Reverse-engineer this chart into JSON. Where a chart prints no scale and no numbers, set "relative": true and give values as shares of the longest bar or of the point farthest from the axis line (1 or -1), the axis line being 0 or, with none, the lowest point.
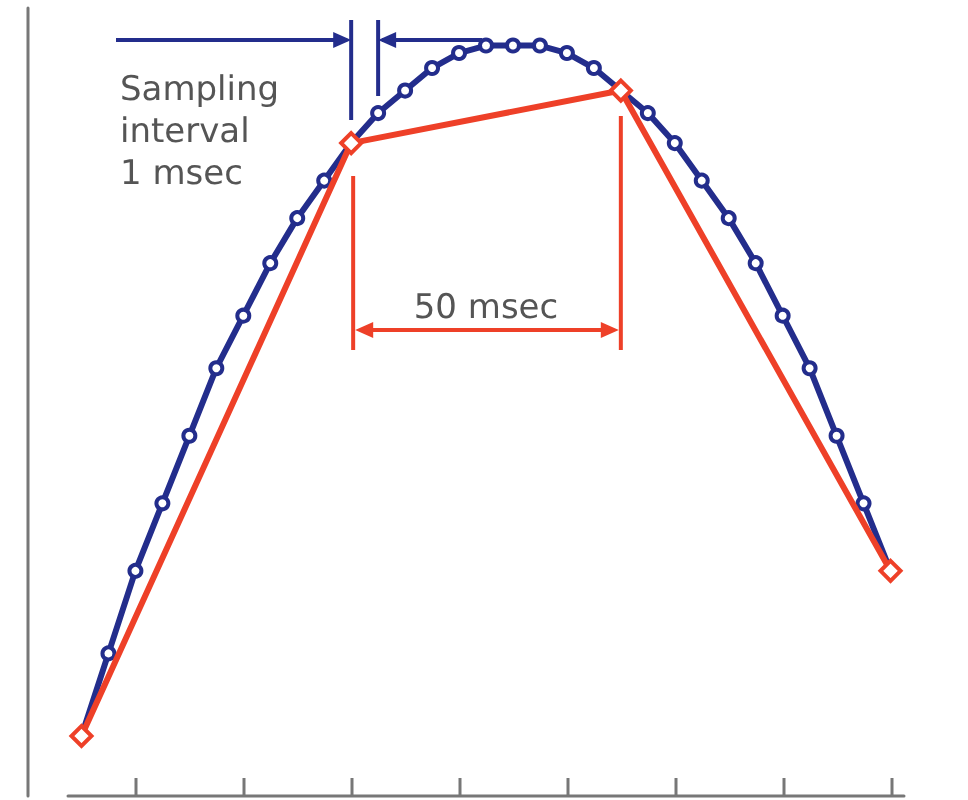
{
  "chart_data": {
    "type": "line",
    "relative": true,
    "categories": [
      null,
      null,
      null,
      null,
      null,
      null,
      null,
      null,
      null,
      null,
      null,
      null,
      null,
      null,
      null,
      null,
      null,
      null,
      null,
      null,
      null,
      null,
      null,
      null,
      null,
      null,
      null,
      null,
      null,
      null,
      null
    ],
    "series": [
      {
        "color": "#232d8c",
        "marker": "circle",
        "values": [
          0.08,
          0.19,
          0.3,
          0.39,
          0.48,
          0.57,
          0.64,
          0.71,
          0.77,
          0.82,
          0.87,
          0.91,
          0.94,
          0.97,
          0.99,
          1.0,
          1,
          1.0,
          0.99,
          0.97,
          0.94,
          0.91,
          0.87,
          0.82,
          0.77,
          0.71,
          0.64,
          0.57,
          0.48,
          0.39,
          0.3
        ]
      },
      {
        "color": "#ee4028",
        "marker": "diamond",
        "values": [
          0.08,
          null,
          null,
          null,
          null,
          null,
          null,
          null,
          null,
          null,
          0.87,
          null,
          null,
          null,
          null,
          null,
          null,
          null,
          null,
          null,
          0.94,
          null,
          null,
          null,
          null,
          null,
          null,
          null,
          null,
          null,
          0.3
        ]
      }
    ],
    "annotations": [
      "Sampling\ninterval\n1 msec",
      "50 msec"
    ],
    "grid": false
  }
}
